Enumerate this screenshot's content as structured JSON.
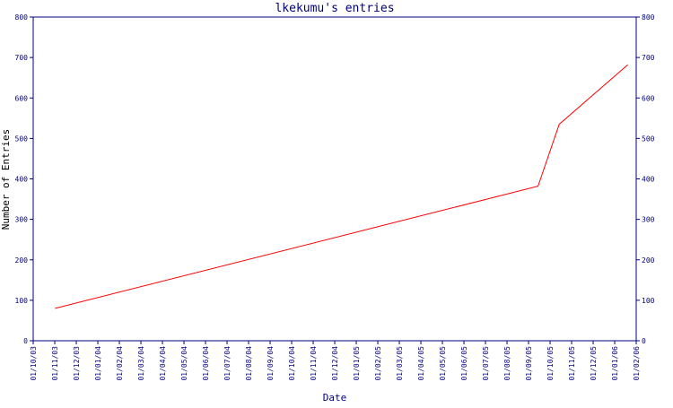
{
  "chart_data": {
    "type": "line",
    "title": "lkekumu's entries",
    "xlabel": "Date",
    "ylabel": "Number of Entries",
    "ylim": [
      0,
      800
    ],
    "yticks": [
      0,
      100,
      200,
      300,
      400,
      500,
      600,
      700,
      800
    ],
    "x_ticks": [
      "01/10/03",
      "01/11/03",
      "01/12/03",
      "01/01/04",
      "01/02/04",
      "01/03/04",
      "01/04/04",
      "01/05/04",
      "01/06/04",
      "01/07/04",
      "01/08/04",
      "01/09/04",
      "01/10/04",
      "01/11/04",
      "01/12/04",
      "01/01/05",
      "01/02/05",
      "01/03/05",
      "01/04/05",
      "01/05/05",
      "01/06/05",
      "01/07/05",
      "01/08/05",
      "01/09/05",
      "01/10/05",
      "01/11/05",
      "01/12/05",
      "01/01/06",
      "01/02/06"
    ],
    "xlim": [
      "2003-10-01",
      "2006-02-01"
    ],
    "grid": false,
    "colors": {
      "axis": "#000080",
      "series": "#ff0000",
      "title": "#000080"
    },
    "series": [
      {
        "x": [
          "2003-11-01",
          "2005-09-15",
          "2005-10-15",
          "2006-01-20"
        ],
        "values": [
          80,
          382,
          535,
          682
        ]
      }
    ]
  }
}
